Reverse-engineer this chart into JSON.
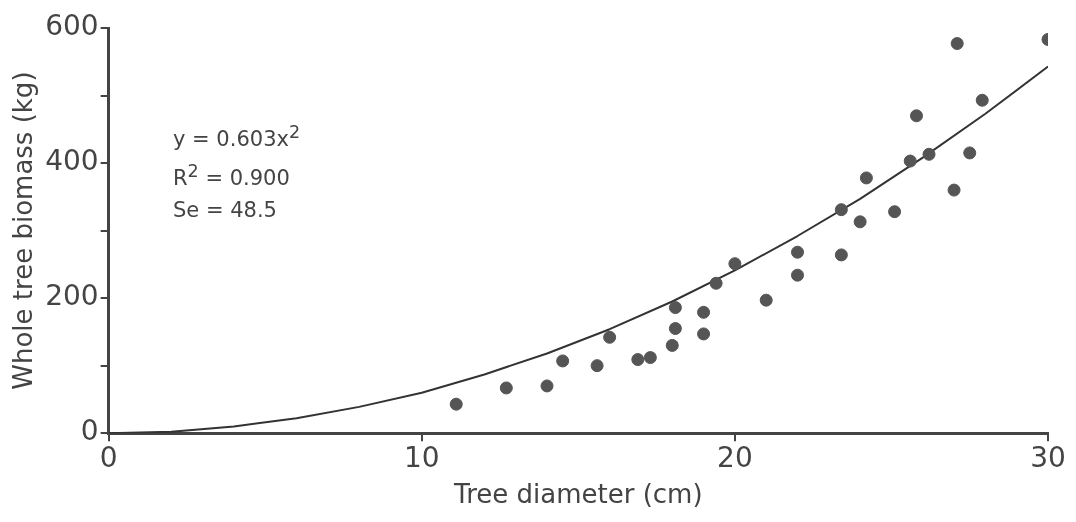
{
  "chart_data": {
    "type": "scatter",
    "xlabel": "Tree diameter (cm)",
    "ylabel": "Whole tree biomass (kg)",
    "xlim": [
      0,
      30
    ],
    "xticks": [
      0,
      10,
      20,
      30
    ],
    "ylim": [
      0,
      600
    ],
    "yticks": [
      0,
      {
        "value": 100,
        "label": null
      },
      200,
      {
        "value": 300,
        "label": null
      },
      400,
      {
        "value": 500,
        "label": null
      },
      600
    ],
    "grid": false,
    "legend": false,
    "annotations": [
      "y = 0.603x$^{2}$",
      "R$^{2}$ = 0.900",
      "Se = 48.5"
    ],
    "series": [
      {
        "marker": "circle",
        "color": "#555555",
        "x": [
          11.1,
          12.7,
          14.0,
          14.5,
          15.6,
          16.0,
          16.9,
          17.3,
          18.0,
          18.1,
          18.1,
          19.0,
          19.0,
          19.4,
          20.0,
          21.0,
          22.0,
          22.0,
          23.4,
          23.4,
          24.0,
          24.2,
          25.1,
          25.6,
          25.8,
          26.2,
          27.0,
          27.1,
          27.5,
          27.9,
          30.0
        ],
        "values": [
          43,
          67,
          70,
          107,
          100,
          142,
          109,
          112,
          130,
          155,
          186,
          147,
          179,
          222,
          251,
          197,
          268,
          234,
          331,
          264,
          313,
          378,
          328,
          403,
          470,
          413,
          360,
          577,
          415,
          493,
          583
        ]
      },
      {
        "type": "line",
        "marker": "none",
        "color": "#333333",
        "x": [
          0,
          2,
          4,
          6,
          8,
          10,
          12,
          14,
          16,
          18,
          20,
          22,
          24,
          26,
          28,
          30
        ],
        "values": [
          0,
          2,
          10,
          22,
          39,
          60,
          87,
          118,
          154,
          195,
          241,
          292,
          347,
          408,
          473,
          543
        ]
      }
    ]
  }
}
